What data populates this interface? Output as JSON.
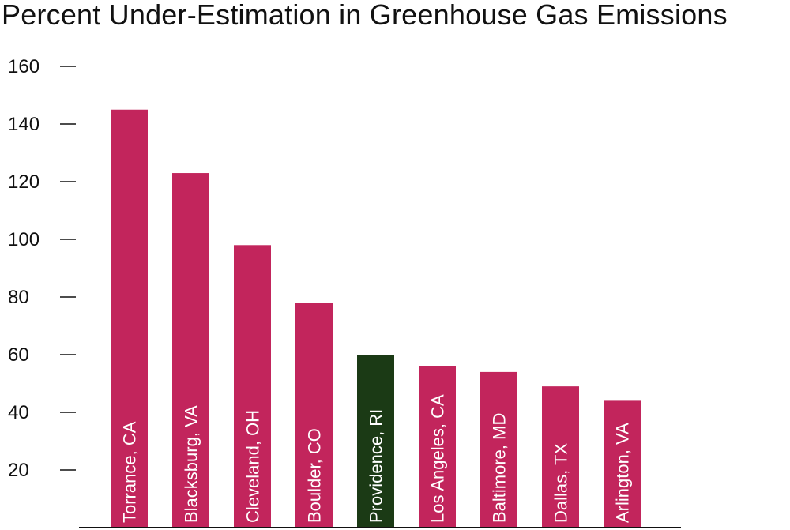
{
  "chart_data": {
    "type": "bar",
    "title": "Percent Under-Estimation in Greenhouse Gas Emissions",
    "xlabel": "",
    "ylabel": "",
    "categories": [
      "Torrance, CA",
      "Blacksburg, VA",
      "Cleveland, OH",
      "Boulder, CO",
      "Providence, RI",
      "Los Angeles, CA",
      "Baltimore, MD",
      "Dallas, TX",
      "Arlington, VA"
    ],
    "values": [
      145,
      123,
      98,
      78,
      60,
      56,
      54,
      49,
      44
    ],
    "bar_colors": [
      "#c2255c",
      "#c2255c",
      "#c2255c",
      "#c2255c",
      "#1b3a15",
      "#c2255c",
      "#c2255c",
      "#c2255c",
      "#c2255c"
    ],
    "yticks": [
      20,
      40,
      60,
      80,
      100,
      120,
      140,
      160
    ],
    "ylim": [
      0,
      160
    ],
    "grid": false,
    "legend": "none",
    "bar_label_position": "inside-bottom-rotated"
  }
}
